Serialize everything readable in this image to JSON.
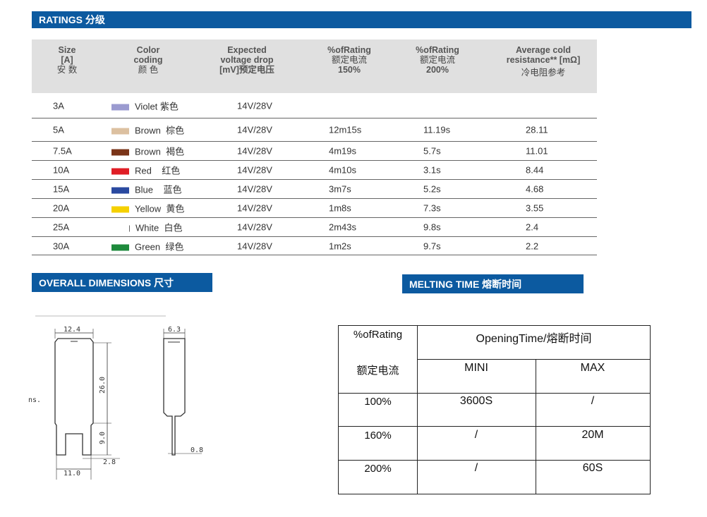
{
  "ratings_band": "RATINGS 分级",
  "dims_band": "OVERALL DIMENSIONS 尺寸",
  "melt_band": "MELTING TIME  熔断时间",
  "ratings_header": {
    "size": [
      "Size",
      "[A]",
      "安    数"
    ],
    "color": [
      "Color",
      "coding",
      "颜    色"
    ],
    "drop": [
      "Expected",
      "voltage drop",
      "[mV]预定电压"
    ],
    "r150": [
      "%ofRating",
      "额定电流",
      "150%"
    ],
    "r200": [
      "%ofRating",
      "额定电流",
      "200%"
    ],
    "resist": [
      "Average cold",
      "resistance** [mΩ]",
      "冷电阻参考"
    ]
  },
  "ratings_rows": [
    {
      "size": "3A",
      "color_name": "Violet 紫色",
      "swatch": "#9b9bd0",
      "drop": "14V/28V",
      "r150": "",
      "r200": "",
      "resist": ""
    },
    {
      "size": "5A",
      "color_name": "Brown  棕色",
      "swatch": "#dcc0a0",
      "drop": "14V/28V",
      "r150": "12m15s",
      "r200": "11.19s",
      "resist": "28.11"
    },
    {
      "size": "7.5A",
      "color_name": "Brown  褐色",
      "swatch": "#7a3418",
      "drop": "14V/28V",
      "r150": "4m19s",
      "r200": "5.7s",
      "resist": "11.01"
    },
    {
      "size": "10A",
      "color_name": "Red    红色",
      "swatch": "#e01e26",
      "drop": "14V/28V",
      "r150": "4m10s",
      "r200": "3.1s",
      "resist": "8.44"
    },
    {
      "size": "15A",
      "color_name": "Blue    蓝色",
      "swatch": "#2a4aa0",
      "drop": "14V/28V",
      "r150": "3m7s",
      "r200": "5.2s",
      "resist": "4.68"
    },
    {
      "size": "20A",
      "color_name": "Yellow  黄色",
      "swatch": "#f5d000",
      "drop": "14V/28V",
      "r150": "1m8s",
      "r200": "7.3s",
      "resist": "3.55"
    },
    {
      "size": "25A",
      "color_name": "White  白色",
      "swatch": "",
      "drop": "14V/28V",
      "r150": "2m43s",
      "r200": "9.8s",
      "resist": "2.4"
    },
    {
      "size": "30A",
      "color_name": "Green  绿色",
      "swatch": "#1e8a3c",
      "drop": "14V/28V",
      "r150": "1m2s",
      "r200": "9.7s",
      "resist": "2.2"
    }
  ],
  "dims": {
    "w": "12.4",
    "t": "6.3",
    "h": "26.0",
    "leg": "9.0",
    "gap": "2.8",
    "pin": "0.8",
    "span": "11.0",
    "side_note": "ns."
  },
  "melt": {
    "h_rating": "%ofRating",
    "h_rating_cn": "额定电流",
    "h_open": "OpeningTime/熔断时间",
    "h_mini": "MINI",
    "h_max": "MAX",
    "rows": [
      {
        "rating": "100%",
        "mini": "3600S",
        "max": "/"
      },
      {
        "rating": "160%",
        "mini": "/",
        "max": "20M"
      },
      {
        "rating": "200%",
        "mini": "/",
        "max": "60S"
      }
    ]
  }
}
